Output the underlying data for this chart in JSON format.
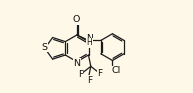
{
  "bg_color": "#fdf8e8",
  "bond_color": "#1a1a1a",
  "figsize": [
    1.93,
    0.93
  ],
  "dpi": 100,
  "xlim": [
    0.0,
    6.6
  ],
  "ylim": [
    0.0,
    3.1
  ]
}
